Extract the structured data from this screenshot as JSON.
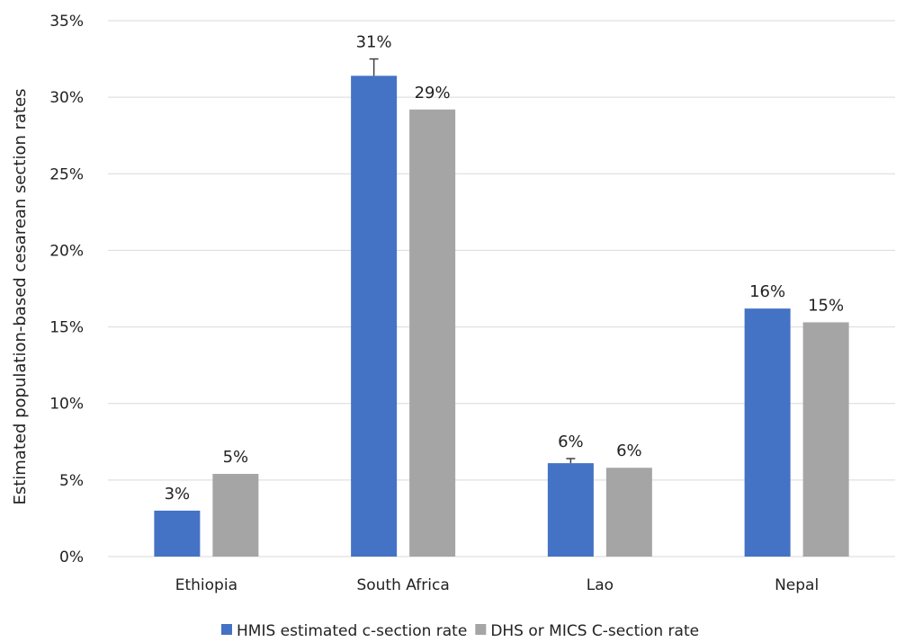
{
  "chart_data": {
    "type": "bar",
    "title": "",
    "xlabel": "",
    "ylabel": "Estimated population-based cesarean section rates",
    "categories": [
      "Ethiopia",
      "South Africa",
      "Lao",
      "Nepal"
    ],
    "series": [
      {
        "name": "HMIS estimated c-section rate",
        "color": "#4472c4",
        "values": [
          3.0,
          31.4,
          6.1,
          16.2
        ],
        "labels": [
          "3%",
          "31%",
          "6%",
          "16%"
        ],
        "error_upper": [
          null,
          32.5,
          6.4,
          null
        ]
      },
      {
        "name": "DHS or MICS C-section rate",
        "color": "#a5a5a5",
        "values": [
          5.4,
          29.2,
          5.8,
          15.3
        ],
        "labels": [
          "5%",
          "29%",
          "6%",
          "15%"
        ],
        "error_upper": [
          null,
          null,
          null,
          null
        ]
      }
    ],
    "y_ticks": [
      0,
      5,
      10,
      15,
      20,
      25,
      30,
      35
    ],
    "y_tick_labels": [
      "0%",
      "5%",
      "10%",
      "15%",
      "20%",
      "25%",
      "30%",
      "35%"
    ],
    "ylim": [
      0,
      35
    ],
    "grid": true,
    "gridline_color": "#d9d9d9",
    "legend_position": "bottom"
  }
}
